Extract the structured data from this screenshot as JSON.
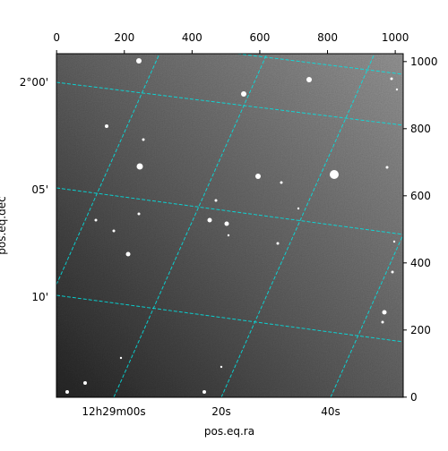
{
  "chart_data": {
    "type": "image",
    "x_label": "pos.eq.ra",
    "y_label": "pos.eq.dec",
    "xlim": [
      -0.5,
      1023.5
    ],
    "ylim": [
      -0.5,
      1023.5
    ],
    "xticks": [
      0,
      200,
      400,
      600,
      800,
      1000
    ],
    "yticks": [
      0,
      200,
      400,
      600,
      800,
      1000
    ],
    "ra_labels": [
      "12h29m00s",
      "20s",
      "40s"
    ],
    "dec_labels": [
      "2°00'",
      "05'",
      "10'"
    ]
  }
}
